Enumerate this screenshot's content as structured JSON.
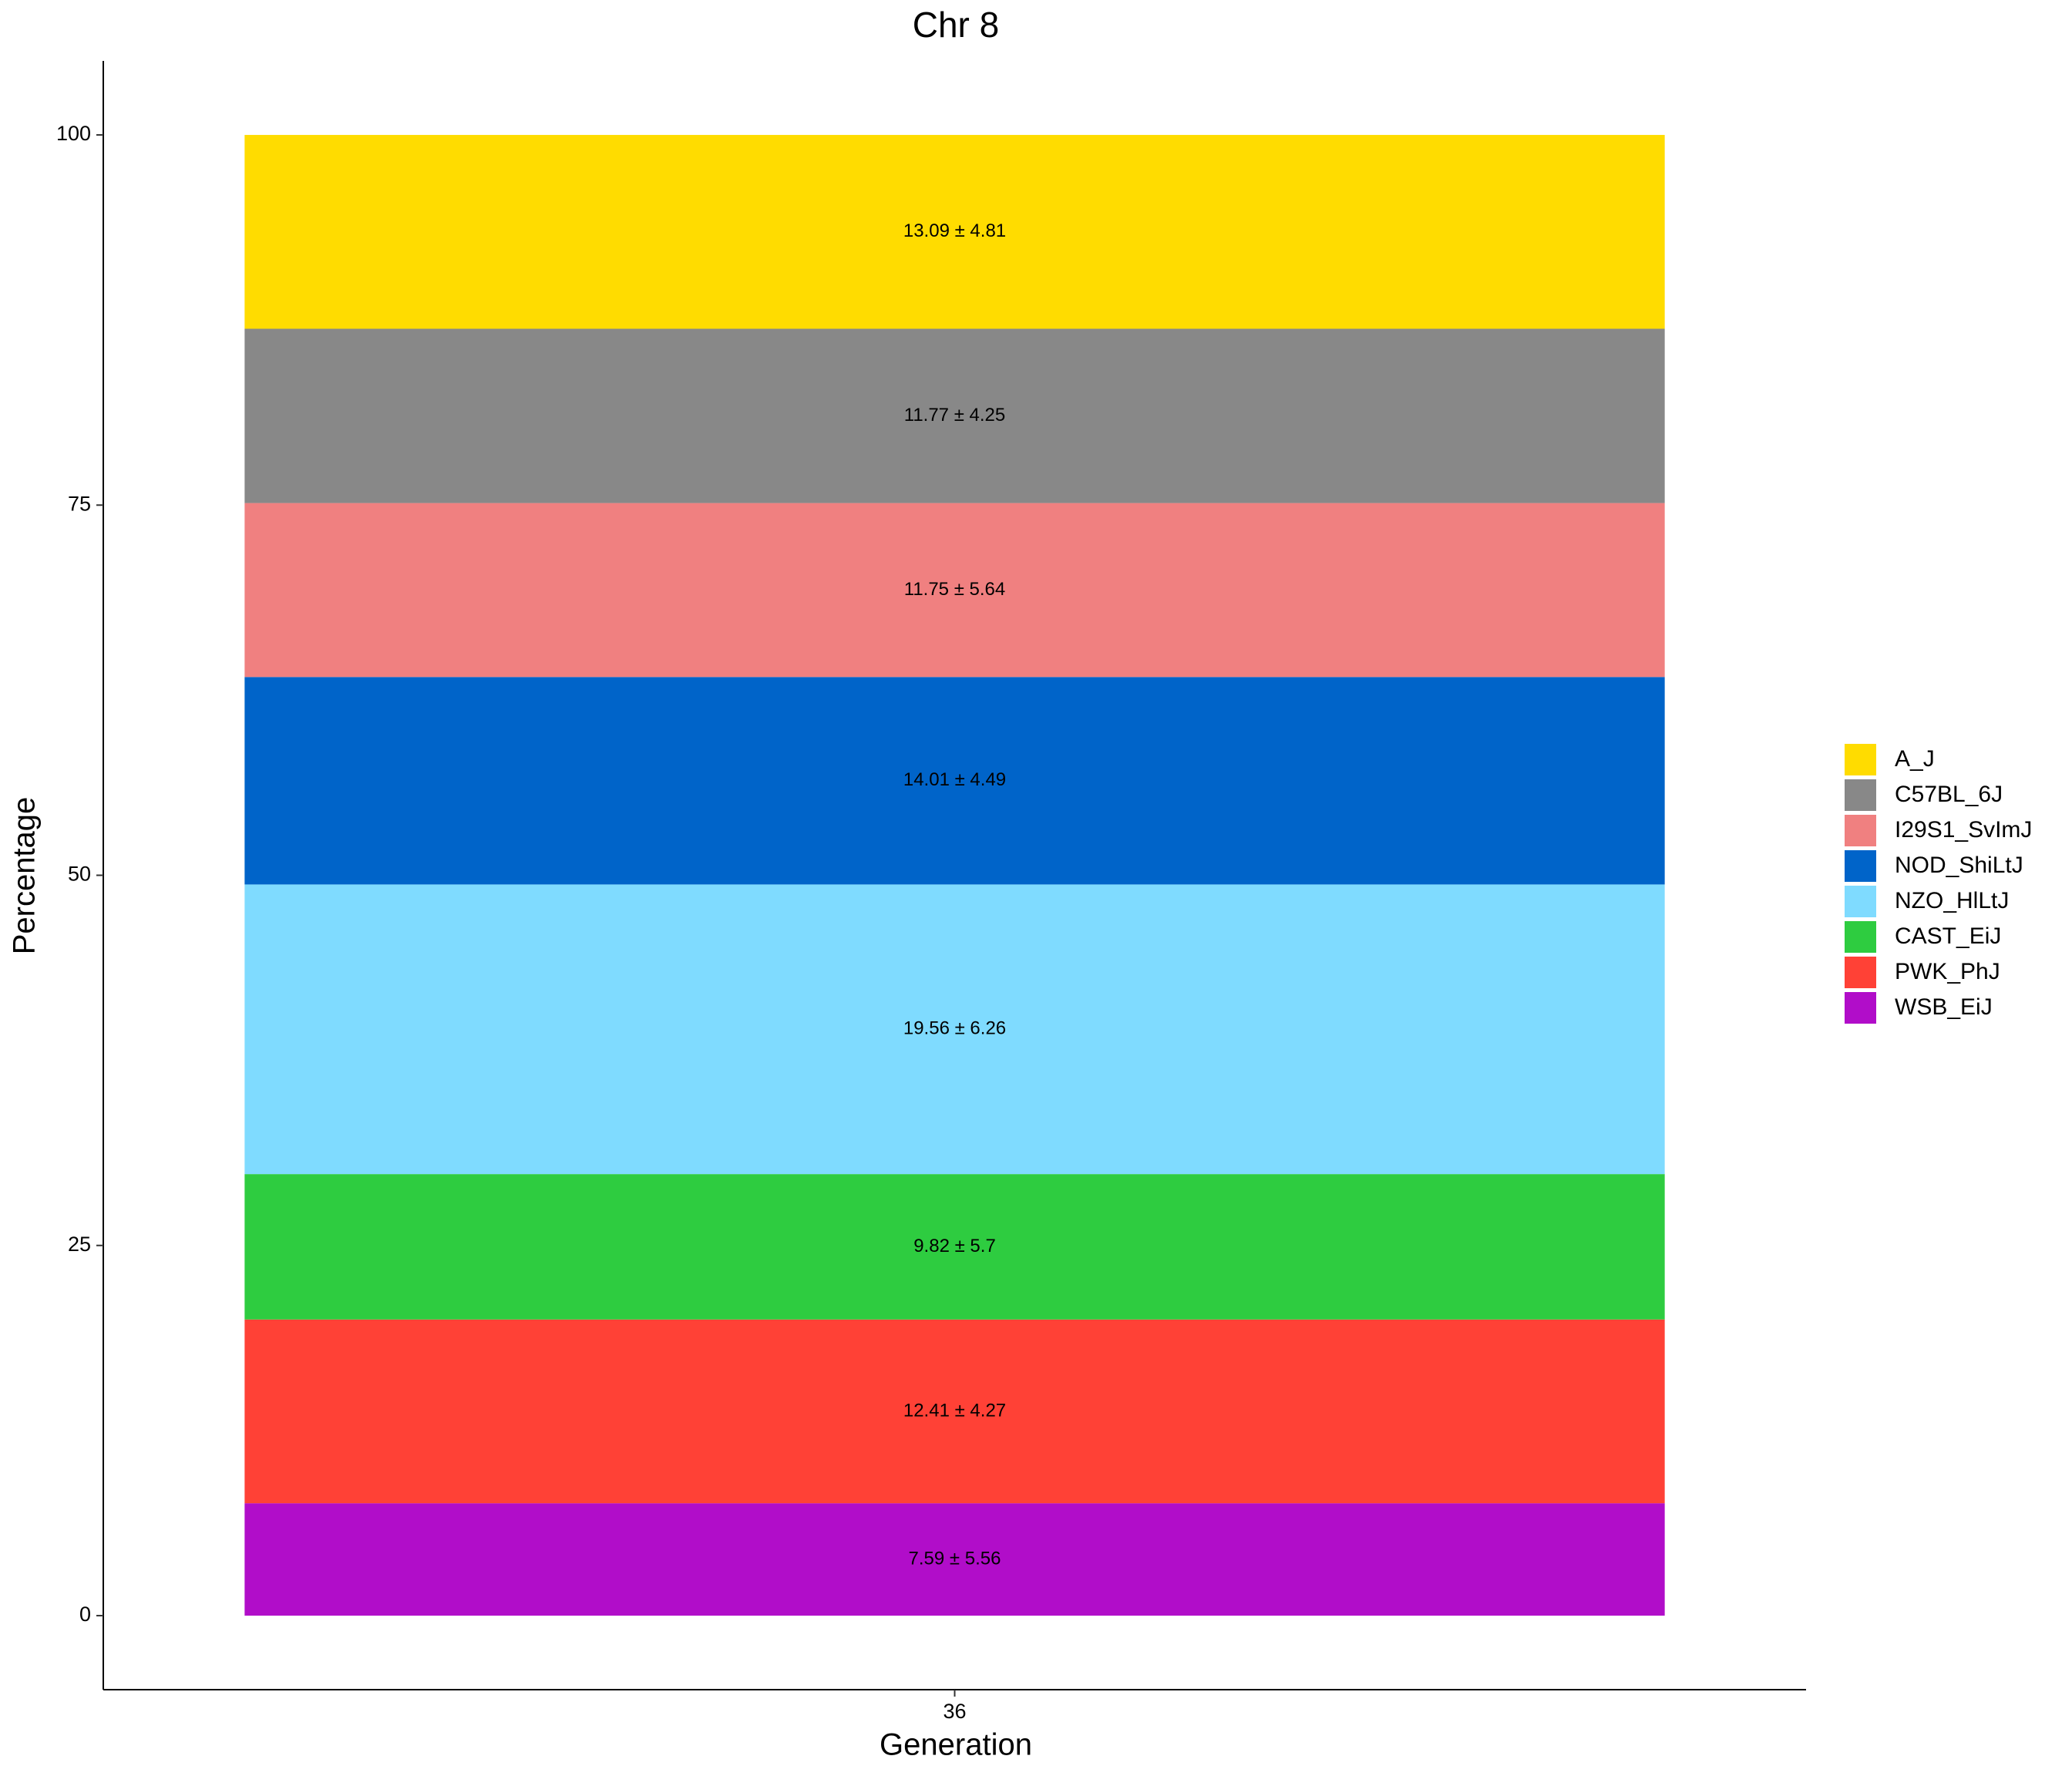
{
  "chart_data": {
    "type": "stacked_bar",
    "title": "Chr 8",
    "x_label": "Generation",
    "y_label": "Percentage",
    "categories": [
      "36"
    ],
    "series": [
      {
        "name": "A_J",
        "color": "#FFDC00",
        "values": [
          13.09
        ],
        "value_labels": [
          "13.09 ± 4.81"
        ]
      },
      {
        "name": "C57BL_6J",
        "color": "#888888",
        "values": [
          11.77
        ],
        "value_labels": [
          "11.77 ± 4.25"
        ]
      },
      {
        "name": "I29S1_SvImJ",
        "color": "#F08080",
        "values": [
          11.75
        ],
        "value_labels": [
          "11.75 ± 5.64"
        ]
      },
      {
        "name": "NOD_ShiLtJ",
        "color": "#0064C9",
        "values": [
          14.01
        ],
        "value_labels": [
          "14.01 ± 4.49"
        ]
      },
      {
        "name": "NZO_HlLtJ",
        "color": "#7FDBFF",
        "values": [
          19.56
        ],
        "value_labels": [
          "19.56 ± 6.26"
        ]
      },
      {
        "name": "CAST_EiJ",
        "color": "#2ECC40",
        "values": [
          9.82
        ],
        "value_labels": [
          "9.82 ± 5.7"
        ]
      },
      {
        "name": "PWK_PhJ",
        "color": "#FF4136",
        "values": [
          12.41
        ],
        "value_labels": [
          "12.41 ± 4.27"
        ]
      },
      {
        "name": "WSB_EiJ",
        "color": "#B10DC9",
        "values": [
          7.59
        ],
        "value_labels": [
          "7.59 ± 5.56"
        ]
      }
    ],
    "ylim": [
      -5,
      105
    ],
    "yticks": [
      0,
      25,
      50,
      75,
      100
    ],
    "grid": false,
    "legend": "right"
  }
}
